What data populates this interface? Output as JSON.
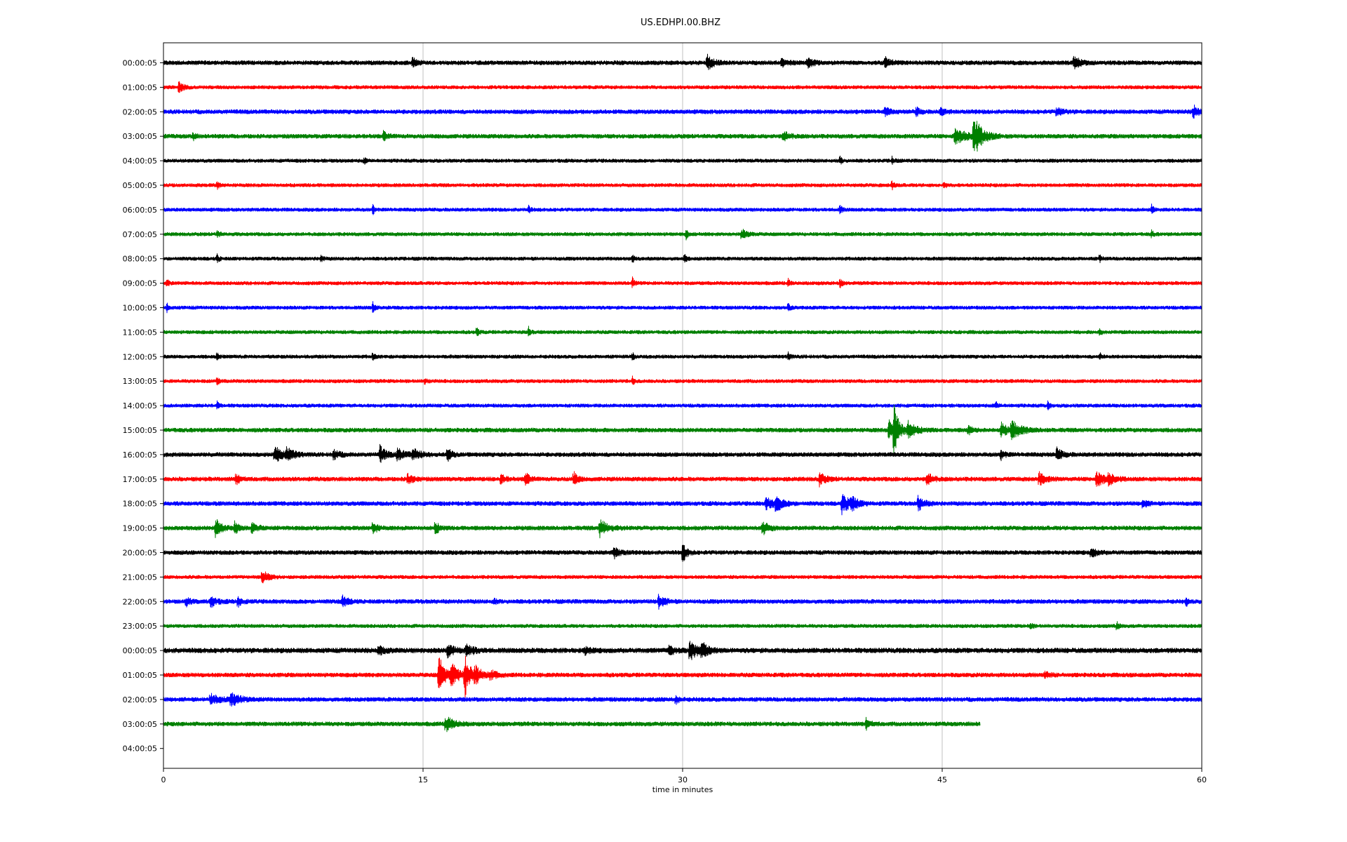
{
  "chart_data": {
    "type": "line",
    "title": "US.EDHPI.00.BHZ",
    "xlabel": "time in minutes",
    "ylabel": "",
    "xlim": [
      0,
      60
    ],
    "xticks": [
      0,
      15,
      30,
      45,
      60
    ],
    "grid": "vertical at x ticks",
    "line_colors": [
      "#000000",
      "#ff0000",
      "#0000ff",
      "#008000"
    ],
    "rows": [
      {
        "label": "00:00:05",
        "end": 60,
        "noise": 3,
        "events": [
          {
            "t": 14.4,
            "a": 9,
            "w": 0.2
          },
          {
            "t": 31.4,
            "a": 12,
            "w": 0.3
          },
          {
            "t": 35.7,
            "a": 6,
            "w": 0.3
          },
          {
            "t": 37.2,
            "a": 7,
            "w": 0.3
          },
          {
            "t": 41.7,
            "a": 7,
            "w": 0.3
          },
          {
            "t": 52.6,
            "a": 10,
            "w": 0.3
          }
        ]
      },
      {
        "label": "01:00:05",
        "end": 60,
        "noise": 2.5,
        "events": [
          {
            "t": 0.9,
            "a": 9,
            "w": 0.2
          }
        ]
      },
      {
        "label": "02:00:05",
        "end": 60,
        "noise": 3,
        "events": [
          {
            "t": 41.7,
            "a": 7,
            "w": 0.2
          },
          {
            "t": 43.5,
            "a": 6,
            "w": 0.2
          },
          {
            "t": 44.9,
            "a": 6,
            "w": 0.2
          },
          {
            "t": 51.6,
            "a": 6,
            "w": 0.3
          },
          {
            "t": 59.5,
            "a": 9,
            "w": 0.3
          }
        ]
      },
      {
        "label": "03:00:05",
        "end": 60,
        "noise": 3,
        "events": [
          {
            "t": 1.7,
            "a": 6,
            "w": 0.1
          },
          {
            "t": 12.7,
            "a": 6,
            "w": 0.2
          },
          {
            "t": 35.8,
            "a": 7,
            "w": 0.3
          },
          {
            "t": 45.7,
            "a": 10,
            "w": 0.8
          },
          {
            "t": 46.8,
            "a": 30,
            "w": 0.4
          }
        ]
      },
      {
        "label": "04:00:05",
        "end": 60,
        "noise": 2.5,
        "events": [
          {
            "t": 11.6,
            "a": 4,
            "w": 0.1
          },
          {
            "t": 39.1,
            "a": 5,
            "w": 0.1
          },
          {
            "t": 42.1,
            "a": 5,
            "w": 0.1
          }
        ]
      },
      {
        "label": "05:00:05",
        "end": 60,
        "noise": 2.5,
        "events": [
          {
            "t": 3.1,
            "a": 5,
            "w": 0.1
          },
          {
            "t": 42.1,
            "a": 6,
            "w": 0.1
          },
          {
            "t": 45.1,
            "a": 6,
            "w": 0.1
          }
        ]
      },
      {
        "label": "06:00:05",
        "end": 60,
        "noise": 2.5,
        "events": [
          {
            "t": 12.1,
            "a": 6,
            "w": 0.1
          },
          {
            "t": 21.1,
            "a": 5,
            "w": 0.1
          },
          {
            "t": 39.1,
            "a": 6,
            "w": 0.1
          },
          {
            "t": 57.1,
            "a": 6,
            "w": 0.1
          }
        ]
      },
      {
        "label": "07:00:05",
        "end": 60,
        "noise": 2.5,
        "events": [
          {
            "t": 3.1,
            "a": 6,
            "w": 0.1
          },
          {
            "t": 30.2,
            "a": 6,
            "w": 0.1
          },
          {
            "t": 33.4,
            "a": 7,
            "w": 0.3
          },
          {
            "t": 57.1,
            "a": 5,
            "w": 0.1
          }
        ]
      },
      {
        "label": "08:00:05",
        "end": 60,
        "noise": 2.5,
        "events": [
          {
            "t": 3.1,
            "a": 6,
            "w": 0.1
          },
          {
            "t": 9.1,
            "a": 5,
            "w": 0.1
          },
          {
            "t": 27.1,
            "a": 6,
            "w": 0.1
          },
          {
            "t": 30.1,
            "a": 6,
            "w": 0.1
          },
          {
            "t": 54.1,
            "a": 5,
            "w": 0.1
          }
        ]
      },
      {
        "label": "09:00:05",
        "end": 60,
        "noise": 2.5,
        "events": [
          {
            "t": 0.2,
            "a": 6,
            "w": 0.1
          },
          {
            "t": 27.1,
            "a": 7,
            "w": 0.1
          },
          {
            "t": 36.1,
            "a": 5,
            "w": 0.1
          },
          {
            "t": 39.1,
            "a": 6,
            "w": 0.1
          }
        ]
      },
      {
        "label": "10:00:05",
        "end": 60,
        "noise": 2.5,
        "events": [
          {
            "t": 0.2,
            "a": 6,
            "w": 0.1
          },
          {
            "t": 12.1,
            "a": 8,
            "w": 0.1
          },
          {
            "t": 36.1,
            "a": 5,
            "w": 0.1
          }
        ]
      },
      {
        "label": "11:00:05",
        "end": 60,
        "noise": 2.5,
        "events": [
          {
            "t": 18.1,
            "a": 6,
            "w": 0.1
          },
          {
            "t": 21.1,
            "a": 7,
            "w": 0.1
          },
          {
            "t": 54.1,
            "a": 6,
            "w": 0.1
          }
        ]
      },
      {
        "label": "12:00:05",
        "end": 60,
        "noise": 2.5,
        "events": [
          {
            "t": 3.1,
            "a": 5,
            "w": 0.1
          },
          {
            "t": 12.1,
            "a": 5,
            "w": 0.1
          },
          {
            "t": 27.1,
            "a": 5,
            "w": 0.1
          },
          {
            "t": 36.1,
            "a": 7,
            "w": 0.1
          },
          {
            "t": 54.1,
            "a": 5,
            "w": 0.1
          }
        ]
      },
      {
        "label": "13:00:05",
        "end": 60,
        "noise": 2.5,
        "events": [
          {
            "t": 3.1,
            "a": 5,
            "w": 0.1
          },
          {
            "t": 15.1,
            "a": 5,
            "w": 0.1
          },
          {
            "t": 27.1,
            "a": 5,
            "w": 0.1
          }
        ]
      },
      {
        "label": "14:00:05",
        "end": 60,
        "noise": 2.5,
        "events": [
          {
            "t": 3.1,
            "a": 5,
            "w": 0.1
          },
          {
            "t": 48.1,
            "a": 5,
            "w": 0.1
          },
          {
            "t": 51.1,
            "a": 5,
            "w": 0.1
          }
        ]
      },
      {
        "label": "15:00:05",
        "end": 60,
        "noise": 3,
        "events": [
          {
            "t": 41.9,
            "a": 14,
            "w": 0.3
          },
          {
            "t": 42.2,
            "a": 40,
            "w": 0.25
          },
          {
            "t": 43.0,
            "a": 12,
            "w": 0.4
          },
          {
            "t": 46.5,
            "a": 6,
            "w": 0.2
          },
          {
            "t": 48.4,
            "a": 10,
            "w": 0.3
          },
          {
            "t": 49.0,
            "a": 12,
            "w": 0.5
          }
        ]
      },
      {
        "label": "16:00:05",
        "end": 60,
        "noise": 3,
        "events": [
          {
            "t": 6.4,
            "a": 12,
            "w": 0.4
          },
          {
            "t": 7.1,
            "a": 8,
            "w": 0.4
          },
          {
            "t": 9.8,
            "a": 7,
            "w": 0.3
          },
          {
            "t": 12.5,
            "a": 12,
            "w": 0.3
          },
          {
            "t": 13.5,
            "a": 8,
            "w": 0.4
          },
          {
            "t": 14.4,
            "a": 7,
            "w": 0.4
          },
          {
            "t": 16.4,
            "a": 10,
            "w": 0.2
          },
          {
            "t": 48.4,
            "a": 6,
            "w": 0.2
          },
          {
            "t": 51.6,
            "a": 9,
            "w": 0.3
          }
        ]
      },
      {
        "label": "17:00:05",
        "end": 60,
        "noise": 3,
        "events": [
          {
            "t": 4.2,
            "a": 8,
            "w": 0.2
          },
          {
            "t": 14.1,
            "a": 8,
            "w": 0.3
          },
          {
            "t": 19.5,
            "a": 7,
            "w": 0.2
          },
          {
            "t": 20.9,
            "a": 10,
            "w": 0.2
          },
          {
            "t": 23.7,
            "a": 10,
            "w": 0.2
          },
          {
            "t": 37.9,
            "a": 9,
            "w": 0.3
          },
          {
            "t": 44.1,
            "a": 9,
            "w": 0.3
          },
          {
            "t": 50.6,
            "a": 10,
            "w": 0.3
          },
          {
            "t": 53.9,
            "a": 10,
            "w": 0.5
          },
          {
            "t": 54.6,
            "a": 8,
            "w": 0.3
          }
        ]
      },
      {
        "label": "18:00:05",
        "end": 60,
        "noise": 3,
        "events": [
          {
            "t": 34.8,
            "a": 8,
            "w": 0.5
          },
          {
            "t": 35.4,
            "a": 10,
            "w": 0.3
          },
          {
            "t": 39.2,
            "a": 14,
            "w": 0.4
          },
          {
            "t": 39.7,
            "a": 10,
            "w": 0.3
          },
          {
            "t": 43.6,
            "a": 10,
            "w": 0.3
          },
          {
            "t": 56.6,
            "a": 7,
            "w": 0.2
          }
        ]
      },
      {
        "label": "19:00:05",
        "end": 60,
        "noise": 3,
        "events": [
          {
            "t": 3.0,
            "a": 14,
            "w": 0.3
          },
          {
            "t": 4.1,
            "a": 9,
            "w": 0.2
          },
          {
            "t": 5.1,
            "a": 8,
            "w": 0.3
          },
          {
            "t": 12.1,
            "a": 9,
            "w": 0.2
          },
          {
            "t": 15.7,
            "a": 9,
            "w": 0.2
          },
          {
            "t": 25.2,
            "a": 12,
            "w": 0.4
          },
          {
            "t": 34.6,
            "a": 10,
            "w": 0.3
          }
        ]
      },
      {
        "label": "20:00:05",
        "end": 60,
        "noise": 3,
        "events": [
          {
            "t": 26.0,
            "a": 8,
            "w": 0.3
          },
          {
            "t": 30.0,
            "a": 14,
            "w": 0.2
          },
          {
            "t": 53.6,
            "a": 6,
            "w": 0.3
          }
        ]
      },
      {
        "label": "21:00:05",
        "end": 60,
        "noise": 2.5,
        "events": [
          {
            "t": 5.7,
            "a": 10,
            "w": 0.3
          }
        ]
      },
      {
        "label": "22:00:05",
        "end": 60,
        "noise": 3,
        "events": [
          {
            "t": 1.3,
            "a": 6,
            "w": 0.2
          },
          {
            "t": 2.7,
            "a": 8,
            "w": 0.3
          },
          {
            "t": 4.3,
            "a": 7,
            "w": 0.2
          },
          {
            "t": 10.3,
            "a": 8,
            "w": 0.3
          },
          {
            "t": 19.1,
            "a": 5,
            "w": 0.1
          },
          {
            "t": 28.6,
            "a": 10,
            "w": 0.3
          },
          {
            "t": 59.1,
            "a": 6,
            "w": 0.1
          }
        ]
      },
      {
        "label": "23:00:05",
        "end": 60,
        "noise": 2.5,
        "events": [
          {
            "t": 50.1,
            "a": 5,
            "w": 0.1
          },
          {
            "t": 55.1,
            "a": 6,
            "w": 0.1
          }
        ]
      },
      {
        "label": "00:00:05",
        "end": 60,
        "noise": 3.5,
        "events": [
          {
            "t": 12.4,
            "a": 6,
            "w": 0.3
          },
          {
            "t": 16.4,
            "a": 8,
            "w": 0.4
          },
          {
            "t": 17.5,
            "a": 7,
            "w": 0.4
          },
          {
            "t": 24.3,
            "a": 5,
            "w": 0.3
          },
          {
            "t": 29.2,
            "a": 6,
            "w": 0.3
          },
          {
            "t": 30.4,
            "a": 14,
            "w": 0.4
          },
          {
            "t": 31.1,
            "a": 10,
            "w": 0.3
          }
        ]
      },
      {
        "label": "01:00:05",
        "end": 60,
        "noise": 3,
        "events": [
          {
            "t": 15.9,
            "a": 30,
            "w": 0.3
          },
          {
            "t": 16.6,
            "a": 16,
            "w": 0.4
          },
          {
            "t": 17.4,
            "a": 30,
            "w": 0.3
          },
          {
            "t": 18.0,
            "a": 10,
            "w": 0.4
          },
          {
            "t": 18.9,
            "a": 6,
            "w": 0.3
          },
          {
            "t": 50.9,
            "a": 6,
            "w": 0.2
          }
        ]
      },
      {
        "label": "02:00:05",
        "end": 60,
        "noise": 3,
        "events": [
          {
            "t": 2.7,
            "a": 7,
            "w": 0.5
          },
          {
            "t": 3.9,
            "a": 8,
            "w": 0.5
          },
          {
            "t": 29.6,
            "a": 5,
            "w": 0.2
          }
        ]
      },
      {
        "label": "03:00:05",
        "end": 47.2,
        "noise": 3,
        "events": [
          {
            "t": 16.3,
            "a": 11,
            "w": 0.4
          },
          {
            "t": 40.6,
            "a": 8,
            "w": 0.2
          }
        ]
      },
      {
        "label": "04:00:05",
        "end": 0,
        "noise": 0,
        "events": []
      }
    ]
  }
}
